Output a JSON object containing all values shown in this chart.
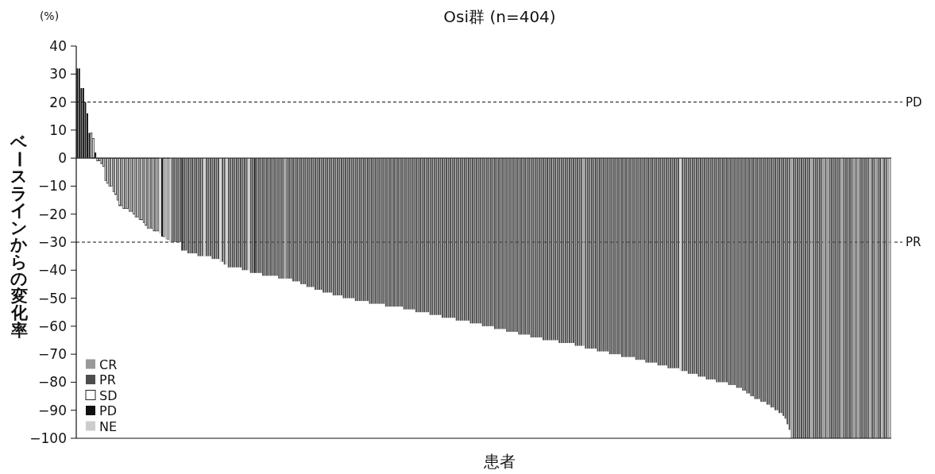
{
  "chart_data": {
    "type": "bar",
    "title": "Osi群 (n=404)",
    "xlabel": "患者",
    "ylabel": "ベースラインからの変化率",
    "annotations": [
      "(%)"
    ],
    "categories": [
      null,
      null,
      null,
      null,
      null,
      null,
      null,
      null,
      null,
      null,
      null,
      null,
      null,
      null,
      null,
      null,
      null,
      null,
      null,
      null,
      null,
      null,
      null,
      null,
      null,
      null,
      null,
      null,
      null,
      null,
      null,
      null,
      null,
      null,
      null,
      null,
      null,
      null,
      null,
      null,
      null,
      null,
      null,
      null,
      null,
      null,
      null,
      null,
      null,
      null,
      null,
      null,
      null,
      null,
      null,
      null,
      null,
      null,
      null,
      null,
      null,
      null,
      null,
      null,
      null,
      null,
      null,
      null,
      null,
      null,
      null,
      null,
      null,
      null,
      null,
      null,
      null,
      null,
      null,
      null,
      null,
      null,
      null,
      null,
      null,
      null,
      null,
      null,
      null,
      null,
      null,
      null,
      null,
      null,
      null,
      null,
      null,
      null,
      null,
      null,
      null,
      null,
      null,
      null,
      null,
      null,
      null,
      null,
      null,
      null,
      null,
      null,
      null,
      null,
      null,
      null,
      null,
      null,
      null,
      null,
      null,
      null,
      null,
      null,
      null,
      null,
      null,
      null,
      null,
      null,
      null,
      null,
      null,
      null,
      null,
      null,
      null,
      null,
      null,
      null,
      null,
      null,
      null,
      null,
      null,
      null,
      null,
      null,
      null,
      null,
      null,
      null,
      null,
      null,
      null,
      null,
      null,
      null,
      null,
      null,
      null,
      null,
      null,
      null,
      null,
      null,
      null,
      null,
      null,
      null,
      null,
      null,
      null,
      null,
      null,
      null,
      null,
      null,
      null,
      null,
      null,
      null,
      null,
      null,
      null,
      null,
      null,
      null,
      null,
      null,
      null,
      null,
      null,
      null,
      null,
      null,
      null,
      null,
      null,
      null,
      null,
      null,
      null,
      null,
      null,
      null,
      null,
      null,
      null,
      null,
      null,
      null,
      null,
      null,
      null,
      null,
      null,
      null,
      null,
      null,
      null,
      null,
      null,
      null,
      null,
      null,
      null,
      null,
      null,
      null,
      null,
      null,
      null,
      null,
      null,
      null,
      null,
      null,
      null,
      null,
      null,
      null,
      null,
      null,
      null,
      null,
      null,
      null,
      null,
      null,
      null,
      null,
      null,
      null,
      null,
      null,
      null,
      null,
      null,
      null,
      null,
      null,
      null,
      null,
      null,
      null,
      null,
      null,
      null,
      null,
      null,
      null,
      null,
      null,
      null,
      null,
      null,
      null,
      null,
      null,
      null,
      null,
      null,
      null,
      null,
      null,
      null,
      null,
      null,
      null,
      null,
      null,
      null,
      null,
      null,
      null,
      null,
      null,
      null,
      null,
      null,
      null,
      null,
      null,
      null,
      null,
      null,
      null,
      null,
      null,
      null,
      null,
      null,
      null,
      null,
      null,
      null,
      null,
      null,
      null,
      null,
      null,
      null,
      null,
      null,
      null,
      null,
      null,
      null,
      null,
      null,
      null,
      null,
      null,
      null,
      null,
      null,
      null,
      null,
      null,
      null,
      null,
      null,
      null,
      null,
      null,
      null,
      null,
      null,
      null,
      null,
      null,
      null,
      null,
      null,
      null,
      null,
      null,
      null,
      null,
      null,
      null,
      null,
      null,
      null,
      null,
      null,
      null,
      null,
      null,
      null,
      null,
      null,
      null,
      null,
      null,
      null,
      null,
      null,
      null,
      null,
      null,
      null,
      null,
      null,
      null,
      null,
      null,
      null,
      null,
      null,
      null,
      null,
      null,
      null,
      null,
      null,
      null,
      null,
      null,
      null,
      null,
      null,
      null
    ],
    "series": [
      {
        "name": "CR",
        "color": "#999999",
        "values": [
          null,
          null,
          null,
          null,
          null,
          null,
          null,
          null,
          null,
          null,
          null,
          null,
          null,
          null,
          null,
          null,
          null,
          null,
          null,
          null,
          null,
          null,
          null,
          null,
          null,
          null,
          null,
          null,
          null,
          null,
          null,
          null,
          null,
          null,
          null,
          null,
          null,
          null,
          null,
          null,
          null,
          null,
          null,
          null,
          null,
          null,
          null,
          null,
          null,
          null,
          null,
          null,
          null,
          null,
          null,
          null,
          null,
          null,
          null,
          null,
          null,
          null,
          null,
          null,
          null,
          null,
          null,
          null,
          null,
          null,
          null,
          null,
          null,
          null,
          null,
          null,
          null,
          null,
          null,
          null,
          null,
          null,
          null,
          null,
          null,
          null,
          null,
          null,
          null,
          null,
          null,
          null,
          null,
          null,
          null,
          null,
          null,
          null,
          null,
          null,
          null,
          null,
          null,
          -43,
          null,
          null,
          null,
          null,
          null,
          null,
          null,
          null,
          null,
          null,
          null,
          null,
          null,
          null,
          null,
          null,
          null,
          null,
          null,
          null,
          null,
          null,
          null,
          null,
          null,
          null,
          null,
          null,
          null,
          null,
          null,
          null,
          null,
          null,
          null,
          null,
          null,
          null,
          null,
          null,
          null,
          null,
          null,
          null,
          null,
          null,
          null,
          null,
          null,
          null,
          null,
          null,
          null,
          null,
          null,
          null,
          null,
          null,
          null,
          null,
          null,
          null,
          null,
          null,
          null,
          null,
          null,
          null,
          null,
          null,
          null,
          null,
          null,
          null,
          null,
          null,
          null,
          null,
          null,
          null,
          null,
          null,
          null,
          null,
          null,
          null,
          null,
          null,
          null,
          null,
          null,
          null,
          null,
          null,
          null,
          null,
          null,
          null,
          null,
          null,
          null,
          null,
          null,
          null,
          null,
          null,
          null,
          null,
          null,
          null,
          null,
          null,
          null,
          null,
          null,
          null,
          null,
          null,
          null,
          null,
          null,
          null,
          null,
          null,
          null,
          null,
          null,
          null,
          null,
          null,
          null,
          null,
          null,
          null,
          null,
          null,
          null,
          null,
          null,
          null,
          null,
          null,
          null,
          null,
          null,
          null,
          null,
          -67,
          null,
          null,
          null,
          null,
          null,
          null,
          null,
          null,
          null,
          null,
          null,
          null,
          null,
          null,
          null,
          null,
          null,
          null,
          null,
          null,
          null,
          null,
          null,
          null,
          null,
          null,
          null,
          null,
          null,
          null,
          null,
          null,
          null,
          null,
          null,
          null,
          null,
          null,
          null,
          null,
          null,
          null,
          null,
          null,
          null,
          null,
          null,
          null,
          null,
          null,
          null,
          null,
          null,
          null,
          null,
          null,
          null,
          null,
          null,
          null,
          null,
          null,
          null,
          null,
          null,
          null,
          null,
          null,
          null,
          null,
          null,
          null,
          null,
          null,
          null,
          null,
          null,
          null,
          null,
          null,
          null,
          null,
          null,
          null,
          null,
          null,
          null,
          null,
          null,
          null,
          null,
          null,
          null,
          null,
          null,
          null,
          null,
          null,
          null,
          null,
          null,
          null,
          -100,
          null,
          null,
          null,
          null,
          null,
          null,
          null,
          null,
          null,
          -100,
          null,
          null,
          null,
          null,
          null,
          -100,
          null,
          -100,
          null,
          null,
          null,
          null,
          null,
          null,
          -100,
          null,
          null,
          null,
          null,
          null,
          -100,
          null,
          -100,
          null,
          null,
          null,
          null,
          null,
          -100,
          null,
          null,
          -100,
          null,
          null,
          -100,
          null,
          null,
          -100,
          -100
        ]
      },
      {
        "name": "PR",
        "color": "#4d4d4d",
        "values": [
          null,
          null,
          null,
          null,
          null,
          null,
          null,
          null,
          null,
          null,
          null,
          null,
          null,
          null,
          null,
          null,
          null,
          null,
          null,
          null,
          null,
          null,
          null,
          null,
          null,
          null,
          null,
          null,
          null,
          null,
          null,
          null,
          null,
          null,
          null,
          null,
          null,
          null,
          null,
          null,
          null,
          null,
          null,
          null,
          null,
          null,
          null,
          -30,
          -30,
          -30,
          -30,
          -30,
          null,
          -33,
          -33,
          -34,
          -34,
          -34,
          -34,
          -34,
          -35,
          -35,
          -35,
          null,
          -35,
          -35,
          -35,
          -36,
          -36,
          -36,
          -36,
          null,
          -37,
          -38,
          null,
          -39,
          -39,
          -39,
          -39,
          -39,
          -39,
          -39,
          -40,
          -40,
          -40,
          null,
          -41,
          -41,
          null,
          -41,
          -41,
          -41,
          -42,
          -42,
          -42,
          -42,
          -42,
          -42,
          -42,
          -42,
          -43,
          -43,
          -43,
          null,
          -43,
          -43,
          -43,
          -44,
          -44,
          -44,
          -44,
          -45,
          -45,
          -45,
          -46,
          -46,
          -46,
          -46,
          -47,
          -47,
          -47,
          -47,
          -48,
          -48,
          -48,
          -48,
          -48,
          -49,
          -49,
          -49,
          -49,
          -49,
          -50,
          -50,
          -50,
          -50,
          -50,
          -50,
          -51,
          -51,
          -51,
          -51,
          -51,
          -51,
          -51,
          -52,
          -52,
          -52,
          -52,
          -52,
          -52,
          -52,
          -52,
          -53,
          -53,
          -53,
          -53,
          -53,
          -53,
          -53,
          -53,
          -53,
          -54,
          -54,
          -54,
          -54,
          -54,
          -54,
          -55,
          -55,
          -55,
          -55,
          -55,
          -55,
          -55,
          -56,
          -56,
          -56,
          -56,
          -56,
          -56,
          -57,
          -57,
          -57,
          -57,
          -57,
          -57,
          -57,
          -58,
          -58,
          -58,
          -58,
          -58,
          -58,
          -58,
          -59,
          -59,
          -59,
          -59,
          -59,
          -59,
          -60,
          -60,
          -60,
          -60,
          -60,
          -60,
          -61,
          -61,
          -61,
          -61,
          -61,
          -61,
          -62,
          -62,
          -62,
          -62,
          -62,
          -62,
          -63,
          -63,
          -63,
          -63,
          -63,
          -63,
          -64,
          -64,
          -64,
          -64,
          -64,
          -64,
          -65,
          -65,
          -65,
          -65,
          -65,
          -65,
          -65,
          -65,
          -66,
          -66,
          -66,
          -66,
          -66,
          -66,
          -66,
          -66,
          -67,
          -67,
          -67,
          -67,
          null,
          -68,
          -68,
          -68,
          -68,
          -68,
          -68,
          -69,
          -69,
          -69,
          -69,
          -69,
          -69,
          -70,
          -70,
          -70,
          -70,
          -70,
          -70,
          -71,
          -71,
          -71,
          -71,
          -71,
          -71,
          -71,
          -72,
          -72,
          -72,
          -72,
          -72,
          -73,
          -73,
          -73,
          -73,
          -73,
          -73,
          -74,
          -74,
          -74,
          -74,
          -74,
          -75,
          -75,
          -75,
          -75,
          -75,
          -75,
          null,
          -76,
          -76,
          -76,
          -77,
          -77,
          -77,
          -77,
          -77,
          -78,
          -78,
          -78,
          -78,
          -79,
          -79,
          -79,
          -79,
          -79,
          -80,
          -80,
          -80,
          -80,
          -80,
          -80,
          -81,
          -81,
          -81,
          -81,
          -82,
          -82,
          -82,
          -83,
          -83,
          -84,
          -84,
          -85,
          -85,
          -86,
          -86,
          -86,
          -87,
          -87,
          -87,
          -88,
          -88,
          -89,
          -89,
          -90,
          -90,
          -91,
          -91,
          -92,
          -93,
          -95,
          -97,
          null,
          -100,
          -100,
          -100,
          -100,
          -100,
          -100,
          -100,
          -100,
          -100,
          null,
          -100,
          -100,
          -100,
          -100,
          -100,
          null,
          -100,
          null,
          -100,
          -100,
          -100,
          -100,
          -100,
          -100,
          null,
          -100,
          -100,
          -100,
          -100,
          -100,
          null,
          -100,
          null,
          -100,
          -100,
          -100,
          -100,
          -100,
          null,
          -100,
          -100,
          null,
          -100,
          -100,
          null,
          -100,
          -100,
          null,
          null
        ]
      },
      {
        "name": "SD",
        "color": "#ffffff",
        "values": [
          null,
          null,
          null,
          null,
          null,
          null,
          null,
          9,
          7,
          null,
          -1,
          -1,
          -2,
          -3,
          -8,
          -9,
          -10,
          -10,
          -12,
          -13,
          -15,
          -17,
          -17,
          -18,
          -18,
          -18,
          -19,
          -19,
          -20,
          -21,
          -21,
          -22,
          -22,
          -23,
          -24,
          -25,
          -25,
          -25,
          -26,
          -26,
          -26,
          null,
          null,
          -28,
          null,
          -29,
          null,
          null,
          null,
          null,
          null,
          null,
          null,
          null,
          null,
          null,
          null,
          null,
          null,
          null,
          null,
          null,
          null,
          null,
          null,
          null,
          null,
          null,
          null,
          null,
          null,
          null,
          null,
          null,
          null,
          null,
          null,
          null,
          null,
          null,
          null,
          null,
          null,
          null,
          null,
          null,
          null,
          null,
          null,
          null,
          null,
          null,
          null,
          null,
          null,
          null,
          null,
          null,
          null,
          null,
          null,
          null,
          null,
          null,
          null,
          null,
          null,
          null,
          null,
          null,
          null,
          null,
          null,
          null,
          null,
          null,
          null,
          null,
          null,
          null,
          null,
          null,
          null,
          null,
          null,
          null,
          null,
          null,
          null,
          null,
          null,
          null,
          null,
          null,
          null,
          null,
          null,
          null,
          null,
          null,
          null,
          null,
          null,
          null,
          null,
          null,
          null,
          null,
          null,
          null,
          null,
          null,
          null,
          null,
          null,
          null,
          null,
          null,
          null,
          null,
          null,
          null,
          null,
          null,
          null,
          null,
          null,
          null,
          null,
          null,
          null,
          null,
          null,
          null,
          null,
          null,
          null,
          null,
          null,
          null,
          null,
          null,
          null,
          null,
          null,
          null,
          null,
          null,
          null,
          null,
          null,
          null,
          null,
          null,
          null,
          null,
          null,
          null,
          null,
          null,
          null,
          null,
          null,
          null,
          null,
          null,
          null,
          null,
          null,
          null,
          null,
          null,
          null,
          null,
          null,
          null,
          null,
          null,
          null,
          null,
          null,
          null,
          null,
          null,
          null,
          null,
          null,
          null,
          null,
          null,
          null,
          null,
          null,
          null,
          null,
          null,
          null,
          null,
          null,
          null,
          null,
          null,
          null,
          null,
          null,
          null,
          null,
          null,
          null,
          null,
          null,
          null,
          null,
          null,
          null,
          null,
          null,
          null,
          null,
          null,
          null,
          null,
          null,
          null,
          null,
          null,
          null,
          null,
          null,
          null,
          null,
          null,
          null,
          null,
          null,
          null,
          null,
          null,
          null,
          null,
          null,
          null,
          null,
          null,
          null,
          null,
          null,
          null,
          null,
          null,
          null,
          null,
          null,
          null,
          null,
          null,
          null,
          null,
          null,
          null,
          null,
          null,
          null,
          null,
          null,
          null,
          null,
          null,
          null,
          null,
          null,
          null,
          null,
          null,
          null,
          null,
          null,
          null,
          null,
          null,
          null,
          null,
          null,
          null,
          null,
          null,
          null,
          null,
          null,
          null,
          null,
          null,
          null,
          null,
          null,
          null,
          null,
          null,
          null,
          null,
          null,
          null,
          null,
          null,
          null,
          null,
          null,
          null,
          null,
          null,
          null,
          null,
          null,
          null,
          null,
          null,
          null,
          null,
          null,
          null,
          null,
          null,
          null,
          null,
          null,
          null,
          null,
          null,
          null,
          null,
          null,
          null,
          null,
          null,
          null,
          null,
          null,
          null,
          null,
          null,
          null,
          null,
          null,
          null,
          null,
          null,
          null,
          null,
          null,
          null,
          null,
          null,
          null,
          null,
          null,
          null,
          null,
          null,
          null,
          null,
          null,
          null,
          null,
          null
        ]
      },
      {
        "name": "PD",
        "color": "#111111",
        "values": [
          32,
          32,
          25,
          25,
          20,
          16,
          9,
          null,
          null,
          2,
          null,
          null,
          null,
          null,
          null,
          null,
          null,
          null,
          null,
          null,
          null,
          null,
          null,
          null,
          null,
          null,
          null,
          null,
          null,
          null,
          null,
          null,
          null,
          null,
          null,
          null,
          null,
          null,
          null,
          null,
          null,
          null,
          -28,
          null,
          null,
          null,
          null,
          null,
          null,
          null,
          null,
          null,
          -33,
          null,
          null,
          null,
          null,
          null,
          null,
          null,
          null,
          null,
          null,
          null,
          null,
          null,
          null,
          null,
          null,
          null,
          null,
          null,
          null,
          null,
          null,
          null,
          null,
          null,
          null,
          null,
          null,
          null,
          null,
          null,
          null,
          null,
          null,
          null,
          -41,
          null,
          null,
          null,
          null,
          null,
          null,
          null,
          null,
          null,
          null,
          null,
          null,
          null,
          null,
          null,
          null,
          null,
          null,
          null,
          null,
          null,
          null,
          null,
          null,
          null,
          null,
          null,
          null,
          null,
          null,
          null,
          null,
          null,
          null,
          null,
          null,
          null,
          null,
          null,
          null,
          null,
          null,
          null,
          null,
          null,
          null,
          null,
          null,
          null,
          null,
          null,
          null,
          null,
          null,
          null,
          null,
          null,
          null,
          null,
          null,
          null,
          null,
          null,
          null,
          null,
          null,
          null,
          null,
          null,
          null,
          null,
          null,
          null,
          null,
          null,
          null,
          null,
          null,
          null,
          null,
          null,
          null,
          null,
          null,
          null,
          null,
          null,
          null,
          null,
          null,
          null,
          null,
          null,
          null,
          null,
          null,
          null,
          null,
          null,
          null,
          null,
          null,
          null,
          null,
          null,
          null,
          null,
          null,
          null,
          null,
          null,
          null,
          null,
          null,
          null,
          null,
          null,
          null,
          null,
          null,
          null,
          null,
          null,
          null,
          null,
          null,
          null,
          null,
          null,
          null,
          null,
          null,
          null,
          null,
          null,
          null,
          null,
          null,
          null,
          null,
          null,
          null,
          null,
          null,
          null,
          null,
          null,
          null,
          null,
          null,
          null,
          null,
          null,
          null,
          null,
          null,
          null,
          null,
          null,
          null,
          null,
          null,
          null,
          null,
          null,
          null,
          null,
          null,
          null,
          null,
          null,
          null,
          null,
          null,
          null,
          null,
          null,
          null,
          null,
          null,
          null,
          null,
          null,
          null,
          null,
          null,
          null,
          null,
          null,
          null,
          null,
          null,
          null,
          null,
          null,
          null,
          null,
          null,
          null,
          null,
          null,
          null,
          null,
          null,
          null,
          null,
          null,
          null,
          null,
          null,
          null,
          null,
          null,
          null,
          null,
          null,
          null,
          null,
          null,
          null,
          null,
          null,
          null,
          null,
          null,
          null,
          null,
          null,
          null,
          null,
          null,
          null,
          null,
          null,
          null,
          null,
          null,
          null,
          null,
          null,
          null,
          null,
          null,
          null,
          null,
          null,
          null,
          null,
          null,
          null,
          null,
          null,
          null,
          null,
          null,
          null,
          null,
          null,
          null,
          null,
          null,
          null,
          null,
          null,
          null,
          null,
          null,
          null,
          null,
          null,
          null,
          null,
          null,
          null,
          null,
          null,
          null,
          null,
          null,
          null,
          null,
          null,
          null,
          null,
          null,
          null,
          null,
          null,
          null,
          null,
          null,
          null,
          null,
          null,
          null,
          null,
          null,
          null,
          null,
          null,
          null,
          null,
          null,
          null,
          null,
          null,
          null,
          null,
          null,
          null,
          null,
          null,
          null,
          null,
          null
        ]
      },
      {
        "name": "NE",
        "color": "#cccccc",
        "values": [
          null,
          null,
          null,
          null,
          null,
          null,
          null,
          null,
          null,
          null,
          null,
          null,
          null,
          null,
          null,
          null,
          null,
          null,
          null,
          null,
          null,
          null,
          null,
          null,
          null,
          null,
          null,
          null,
          null,
          null,
          null,
          null,
          null,
          null,
          null,
          null,
          null,
          null,
          null,
          null,
          null,
          -27,
          null,
          null,
          -29,
          null,
          -30,
          null,
          null,
          null,
          null,
          null,
          null,
          null,
          null,
          null,
          null,
          null,
          null,
          null,
          null,
          null,
          null,
          -35,
          null,
          null,
          null,
          null,
          null,
          null,
          null,
          -37,
          null,
          null,
          -38,
          null,
          null,
          null,
          null,
          null,
          null,
          null,
          null,
          null,
          null,
          -40,
          null,
          null,
          null,
          null,
          null,
          null,
          null,
          null,
          null,
          null,
          null,
          null,
          null,
          null,
          null,
          null,
          null,
          null,
          null,
          null,
          null,
          null,
          null,
          null,
          null,
          null,
          null,
          null,
          null,
          null,
          null,
          null,
          null,
          null,
          null,
          null,
          null,
          null,
          null,
          null,
          null,
          null,
          null,
          null,
          null,
          null,
          null,
          null,
          null,
          null,
          null,
          null,
          null,
          null,
          null,
          null,
          null,
          null,
          null,
          null,
          null,
          null,
          null,
          null,
          null,
          null,
          null,
          null,
          null,
          null,
          null,
          null,
          null,
          null,
          null,
          null,
          null,
          null,
          null,
          null,
          null,
          null,
          null,
          null,
          null,
          null,
          null,
          null,
          null,
          null,
          null,
          null,
          null,
          null,
          null,
          null,
          null,
          null,
          null,
          null,
          null,
          null,
          null,
          null,
          null,
          null,
          null,
          null,
          null,
          null,
          null,
          null,
          null,
          null,
          null,
          null,
          null,
          null,
          null,
          null,
          null,
          null,
          null,
          null,
          null,
          null,
          null,
          null,
          null,
          null,
          null,
          null,
          null,
          null,
          null,
          null,
          null,
          null,
          null,
          null,
          null,
          null,
          null,
          null,
          null,
          null,
          null,
          null,
          null,
          null,
          null,
          null,
          null,
          null,
          null,
          null,
          null,
          null,
          null,
          null,
          null,
          null,
          null,
          null,
          null,
          null,
          null,
          null,
          null,
          null,
          null,
          null,
          null,
          null,
          null,
          null,
          null,
          null,
          null,
          null,
          null,
          null,
          null,
          null,
          null,
          null,
          null,
          null,
          null,
          null,
          null,
          null,
          null,
          null,
          null,
          null,
          null,
          null,
          null,
          null,
          null,
          null,
          null,
          null,
          null,
          null,
          null,
          null,
          null,
          null,
          null,
          null,
          null,
          -76,
          null,
          null,
          null,
          null,
          null,
          null,
          null,
          null,
          null,
          null,
          null,
          null,
          null,
          null,
          null,
          null,
          null,
          null,
          null,
          null,
          null,
          null,
          null,
          null,
          null,
          null,
          null,
          null,
          null,
          null,
          null,
          null,
          null,
          null,
          null,
          null,
          null,
          null,
          null,
          null,
          null,
          null,
          null,
          null,
          null,
          null,
          null,
          null,
          null,
          null,
          null,
          null,
          null,
          null,
          null,
          null,
          null,
          null,
          null,
          null,
          null,
          null,
          null,
          null,
          null,
          null,
          null,
          null,
          null,
          null,
          null,
          null,
          null,
          null,
          null,
          null,
          null,
          null,
          null,
          null,
          null,
          null,
          null,
          null,
          null,
          null,
          null,
          null,
          null,
          null,
          null,
          null,
          null,
          null,
          null,
          null,
          null,
          null,
          null,
          null,
          null,
          null,
          null,
          null
        ]
      }
    ],
    "ylim": [
      -100,
      40
    ],
    "yticks": [
      {
        "value": -100,
        "label": "−100"
      },
      {
        "value": -90,
        "label": "−90"
      },
      {
        "value": -80,
        "label": "−80"
      },
      {
        "value": -70,
        "label": "−70"
      },
      {
        "value": -60,
        "label": "−60"
      },
      {
        "value": -50,
        "label": "−50"
      },
      {
        "value": -40,
        "label": "−40"
      },
      {
        "value": -30,
        "label": "−30"
      },
      {
        "value": -20,
        "label": "−20"
      },
      {
        "value": -10,
        "label": "−10"
      },
      0,
      10,
      20,
      30,
      40
    ],
    "ref_lines": [
      {
        "axis": "y",
        "value": 20,
        "label": "PD",
        "line_style": "dashed"
      },
      {
        "axis": "y",
        "value": -30,
        "label": "PR",
        "line_style": "dashed"
      }
    ],
    "legend": "bottom left",
    "tick_labels": "y"
  }
}
